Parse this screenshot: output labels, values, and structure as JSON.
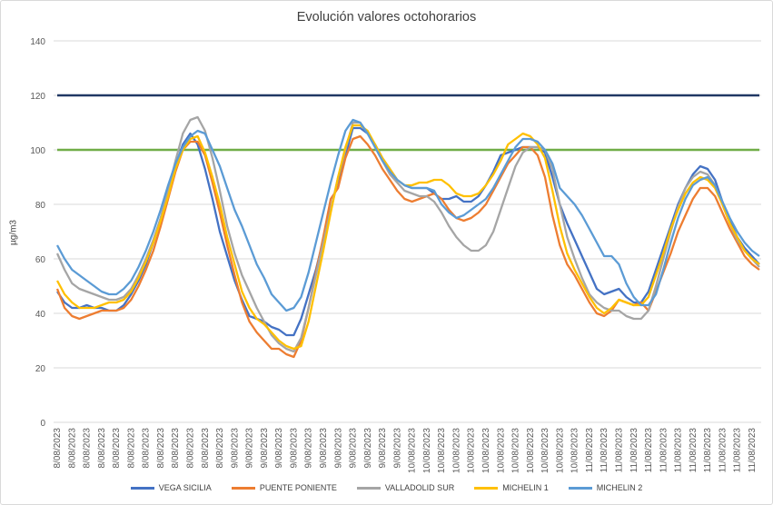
{
  "chart_data": {
    "type": "line",
    "title": "Evolución valores octohorarios",
    "xlabel": "",
    "ylabel": "µg/m3",
    "ylim": [
      0,
      140
    ],
    "yticks": [
      0,
      20,
      40,
      60,
      80,
      100,
      120,
      140
    ],
    "grid": true,
    "legend_position": "bottom",
    "x_tick_labels": [
      "8/08/2023",
      "8/08/2023",
      "8/08/2023",
      "8/08/2023",
      "8/08/2023",
      "8/08/2023",
      "8/08/2023",
      "8/08/2023",
      "8/08/2023",
      "8/08/2023",
      "8/08/2023",
      "8/08/2023",
      "9/08/2023",
      "9/08/2023",
      "9/08/2023",
      "9/08/2023",
      "9/08/2023",
      "9/08/2023",
      "9/08/2023",
      "9/08/2023",
      "9/08/2023",
      "9/08/2023",
      "9/08/2023",
      "9/08/2023",
      "10/08/2023",
      "10/08/2023",
      "10/08/2023",
      "10/08/2023",
      "10/08/2023",
      "10/08/2023",
      "10/08/2023",
      "10/08/2023",
      "10/08/2023",
      "10/08/2023",
      "10/08/2023",
      "10/08/2023",
      "11/08/2023",
      "11/08/2023",
      "11/08/2023",
      "11/08/2023",
      "11/08/2023",
      "11/08/2023",
      "11/08/2023",
      "11/08/2023",
      "11/08/2023",
      "11/08/2023",
      "11/08/2023",
      "11/08/2023"
    ],
    "reference_lines": [
      {
        "value": 120,
        "color": "#203864"
      },
      {
        "value": 100,
        "color": "#70ad47"
      }
    ],
    "series": [
      {
        "name": "VEGA SICILIA",
        "color": "#4472c4",
        "values": [
          48,
          44,
          42,
          42,
          43,
          42,
          42,
          41,
          41,
          43,
          47,
          52,
          58,
          66,
          75,
          85,
          94,
          102,
          106,
          102,
          93,
          82,
          70,
          61,
          52,
          45,
          39,
          38,
          37,
          35,
          34,
          32,
          32,
          38,
          47,
          56,
          67,
          78,
          89,
          98,
          108,
          108,
          106,
          102,
          97,
          93,
          89,
          87,
          86,
          86,
          86,
          84,
          82,
          82,
          83,
          81,
          81,
          83,
          87,
          92,
          98,
          99,
          100,
          101,
          101,
          101,
          99,
          90,
          80,
          73,
          67,
          61,
          55,
          49,
          47,
          48,
          49,
          46,
          44,
          44,
          48,
          56,
          64,
          72,
          80,
          86,
          91,
          94,
          93,
          89,
          81,
          74,
          68,
          64,
          61,
          58
        ]
      },
      {
        "name": "PUENTE PONIENTE",
        "color": "#ed7d31",
        "values": [
          49,
          42,
          39,
          38,
          39,
          40,
          41,
          41,
          41,
          42,
          45,
          50,
          56,
          63,
          72,
          82,
          92,
          100,
          103,
          103,
          98,
          88,
          77,
          65,
          54,
          44,
          37,
          33,
          30,
          27,
          27,
          25,
          24,
          30,
          42,
          55,
          68,
          82,
          86,
          97,
          104,
          105,
          102,
          98,
          93,
          89,
          85,
          82,
          81,
          82,
          83,
          84,
          82,
          78,
          75,
          74,
          75,
          77,
          80,
          85,
          90,
          95,
          98,
          101,
          101,
          98,
          90,
          76,
          65,
          58,
          54,
          49,
          44,
          40,
          39,
          41,
          45,
          44,
          43,
          44,
          41,
          48,
          55,
          62,
          70,
          76,
          82,
          86,
          86,
          83,
          77,
          71,
          66,
          61,
          58,
          56
        ]
      },
      {
        "name": "VALLADOLID SUR",
        "color": "#a5a5a5",
        "values": [
          62,
          56,
          51,
          49,
          48,
          47,
          46,
          45,
          45,
          46,
          49,
          54,
          60,
          67,
          75,
          85,
          96,
          106,
          111,
          112,
          107,
          97,
          85,
          72,
          62,
          54,
          48,
          42,
          37,
          32,
          29,
          27,
          26,
          31,
          42,
          54,
          66,
          78,
          90,
          100,
          110,
          110,
          106,
          101,
          96,
          91,
          88,
          85,
          84,
          83,
          83,
          81,
          77,
          72,
          68,
          65,
          63,
          63,
          65,
          70,
          78,
          86,
          94,
          99,
          101,
          101,
          100,
          93,
          80,
          68,
          60,
          53,
          47,
          44,
          42,
          41,
          41,
          39,
          38,
          38,
          41,
          50,
          60,
          70,
          79,
          86,
          90,
          92,
          91,
          87,
          80,
          73,
          67,
          63,
          60,
          57
        ]
      },
      {
        "name": "MICHELIN 1",
        "color": "#ffc000",
        "values": [
          52,
          47,
          44,
          42,
          42,
          42,
          43,
          44,
          44,
          45,
          48,
          53,
          59,
          66,
          74,
          83,
          93,
          100,
          104,
          105,
          99,
          90,
          80,
          68,
          58,
          48,
          42,
          38,
          36,
          33,
          30,
          28,
          27,
          28,
          37,
          50,
          63,
          77,
          90,
          101,
          109,
          109,
          107,
          102,
          97,
          93,
          89,
          87,
          87,
          88,
          88,
          89,
          89,
          87,
          84,
          83,
          83,
          84,
          87,
          91,
          96,
          102,
          104,
          106,
          105,
          102,
          97,
          85,
          72,
          62,
          56,
          51,
          46,
          42,
          40,
          42,
          45,
          44,
          43,
          43,
          46,
          54,
          62,
          71,
          78,
          84,
          88,
          90,
          89,
          86,
          80,
          73,
          68,
          63,
          60,
          58
        ]
      },
      {
        "name": "MICHELIN 2",
        "color": "#5b9bd5",
        "values": [
          65,
          60,
          56,
          54,
          52,
          50,
          48,
          47,
          47,
          49,
          52,
          57,
          63,
          70,
          78,
          87,
          95,
          101,
          105,
          107,
          106,
          100,
          94,
          86,
          78,
          72,
          65,
          58,
          53,
          47,
          44,
          41,
          42,
          46,
          55,
          66,
          77,
          88,
          98,
          107,
          111,
          110,
          106,
          101,
          96,
          92,
          89,
          87,
          86,
          86,
          86,
          85,
          80,
          77,
          75,
          76,
          78,
          80,
          82,
          86,
          91,
          96,
          101,
          104,
          104,
          103,
          100,
          95,
          86,
          83,
          80,
          76,
          71,
          66,
          61,
          61,
          58,
          51,
          46,
          43,
          43,
          47,
          56,
          66,
          75,
          82,
          87,
          89,
          90,
          87,
          81,
          75,
          70,
          66,
          63,
          61
        ]
      }
    ]
  }
}
